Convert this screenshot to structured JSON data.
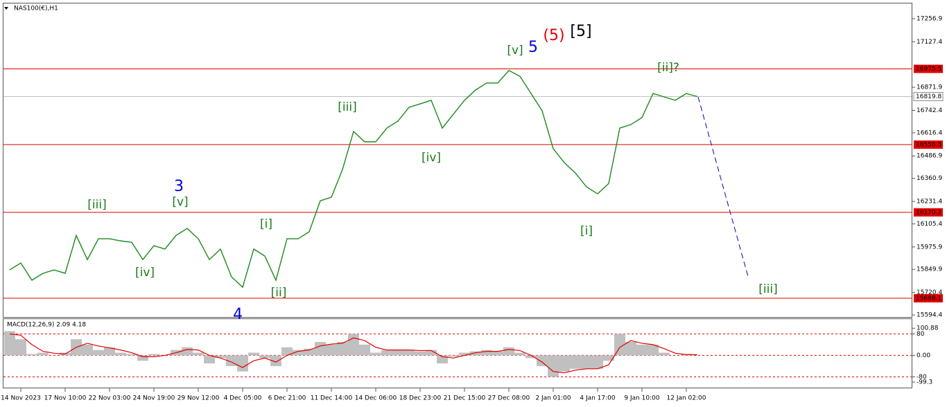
{
  "chart_data": [
    {
      "type": "line",
      "title": "NAS100(€),H1",
      "categories": [
        null,
        "14 Nov 2023",
        null,
        null,
        null,
        "17 Nov 10:00",
        null,
        null,
        null,
        "22 Nov 03:00",
        null,
        null,
        null,
        "24 Nov 19:00",
        null,
        null,
        null,
        "29 Nov 12:00",
        null,
        null,
        null,
        "4 Dec 05:00",
        null,
        null,
        null,
        "6 Dec 21:00",
        null,
        null,
        null,
        "11 Dec 14:00",
        null,
        null,
        null,
        "14 Dec 06:00",
        null,
        null,
        null,
        "18 Dec 23:00",
        null,
        null,
        null,
        "21 Dec 15:00",
        null,
        null,
        null,
        "27 Dec 08:00",
        null,
        null,
        null,
        "2 Jan 01:00",
        null,
        null,
        null,
        "4 Jan 17:00",
        null,
        null,
        null,
        "9 Jan 10:00",
        null,
        null,
        null,
        "12 Jan 02:00",
        null
      ],
      "series": [
        {
          "color": "#1a8a1a",
          "values": [
            15847,
            15886,
            15789,
            15828,
            15847,
            15828,
            16041,
            15905,
            16022,
            16022,
            16010,
            16002,
            15905,
            15983,
            15964,
            16041,
            16080,
            16022,
            15905,
            15964,
            15808,
            15750,
            15964,
            15925,
            15789,
            16022,
            16022,
            16061,
            16235,
            16255,
            16410,
            16624,
            16566,
            16566,
            16643,
            16682,
            16760,
            16779,
            16799,
            16643,
            16721,
            16799,
            16857,
            16896,
            16896,
            16966,
            16934,
            16837,
            16740,
            16527,
            16449,
            16391,
            16313,
            16274,
            16332,
            16643,
            16663,
            16702,
            16837,
            16818,
            16799,
            16837,
            16820
          ]
        }
      ],
      "ylim": [
        15582.7,
        17342.5
      ],
      "yticks": [
        17256.9,
        17127.4,
        16871.9,
        16742.4,
        16616.4,
        16486.9,
        16360.9,
        16231.4,
        16105.4,
        15975.9,
        15849.9,
        15720.4,
        15594.4
      ],
      "levels": [
        16975.5,
        16550.3,
        16170.2,
        15688.1
      ],
      "level_color": "#e00000",
      "current_price": 16819.8,
      "annotations": [
        {
          "text": "[iii]",
          "color": "#1a7a1a"
        },
        {
          "text": "3",
          "color": "#0000dd"
        },
        {
          "text": "[v]",
          "color": "#1a7a1a"
        },
        {
          "text": "[iv]",
          "color": "#1a7a1a"
        },
        {
          "text": "[i]",
          "color": "#1a7a1a"
        },
        {
          "text": "[ii]",
          "color": "#1a7a1a"
        },
        {
          "text": "4",
          "color": "#0000dd"
        },
        {
          "text": "[iii]",
          "color": "#1a7a1a"
        },
        {
          "text": "[iv]",
          "color": "#1a7a1a"
        },
        {
          "text": "[v]",
          "color": "#1a7a1a"
        },
        {
          "text": "5",
          "color": "#0000dd"
        },
        {
          "text": "(5)",
          "color": "#e00000"
        },
        {
          "text": "[5]",
          "color": "#000000"
        },
        {
          "text": "[ii]?",
          "color": "#1a7a1a"
        },
        {
          "text": "[i]",
          "color": "#1a7a1a"
        },
        {
          "text": "[iii]",
          "color": "#1a7a1a"
        }
      ]
    },
    {
      "type": "macd",
      "title": "MACD(12,26,9) 2.09 4.18",
      "series": [
        {
          "color": "#c0c0c0",
          "values": [
            90,
            60,
            5,
            10,
            0,
            10,
            60,
            40,
            20,
            30,
            10,
            5,
            -20,
            5,
            0,
            20,
            30,
            10,
            -30,
            -10,
            -40,
            -60,
            10,
            -10,
            -40,
            30,
            20,
            25,
            50,
            40,
            50,
            80,
            40,
            10,
            20,
            20,
            20,
            15,
            20,
            -30,
            -5,
            10,
            15,
            20,
            15,
            30,
            10,
            -10,
            -40,
            -80,
            -60,
            -50,
            -50,
            -50,
            -20,
            80,
            50,
            40,
            40,
            10,
            0,
            5,
            0
          ]
        },
        {
          "color": "#e00000",
          "values": [
            80,
            75,
            40,
            15,
            8,
            5,
            30,
            45,
            35,
            28,
            20,
            10,
            -5,
            -5,
            0,
            10,
            22,
            20,
            0,
            -10,
            -25,
            -45,
            -20,
            -10,
            -25,
            0,
            15,
            20,
            35,
            42,
            45,
            65,
            55,
            30,
            20,
            20,
            20,
            18,
            18,
            -5,
            -10,
            0,
            10,
            15,
            15,
            22,
            18,
            0,
            -25,
            -60,
            -65,
            -55,
            -50,
            -50,
            -35,
            30,
            55,
            45,
            40,
            25,
            8,
            3,
            2
          ]
        }
      ],
      "ylim": [
        -120,
        135
      ],
      "yticks": [
        100.88,
        80,
        {
          "value": 0,
          "label": "0.00"
        },
        -80,
        -99.3
      ],
      "levels": [
        80,
        0,
        -80
      ]
    }
  ]
}
